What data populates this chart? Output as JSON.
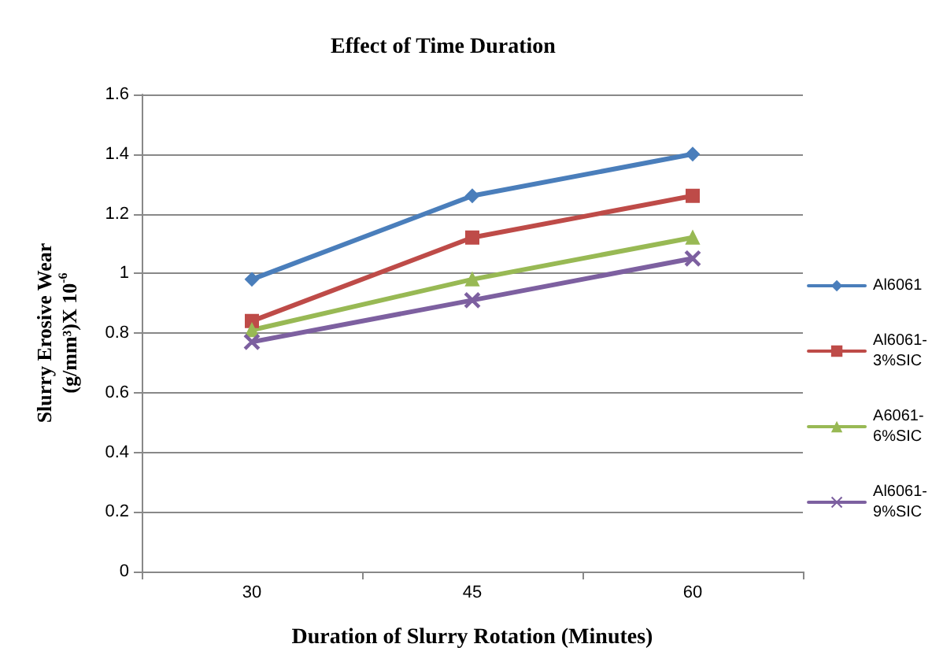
{
  "chart_data": {
    "type": "line",
    "title": "Effect of Time Duration",
    "xlabel": "Duration of Slurry Rotation (Minutes)",
    "ylabel": "Slurry Erosive Wear (g/mm³)X 10$^{-6}$",
    "categories": [
      "30",
      "45",
      "60"
    ],
    "series": [
      {
        "name": "Al6061",
        "color": "#4a7ebb",
        "marker": "diamond",
        "values": [
          0.98,
          1.26,
          1.4
        ]
      },
      {
        "name": "Al6061-3%SIC",
        "color": "#be4b48",
        "marker": "square",
        "values": [
          0.84,
          1.12,
          1.26
        ]
      },
      {
        "name": "A6061-6%SIC",
        "color": "#98b954",
        "marker": "triangle",
        "values": [
          0.81,
          0.98,
          1.12
        ]
      },
      {
        "name": "Al6061-9%SIC",
        "color": "#7d60a0",
        "marker": "cross",
        "values": [
          0.77,
          0.91,
          1.05
        ]
      }
    ],
    "ylim": [
      0,
      1.6
    ],
    "yticks": [
      0,
      0.2,
      0.4,
      0.6,
      0.8,
      1,
      1.2,
      1.4,
      1.6
    ],
    "grid": "y",
    "legend": "right",
    "line_style": "solid"
  }
}
